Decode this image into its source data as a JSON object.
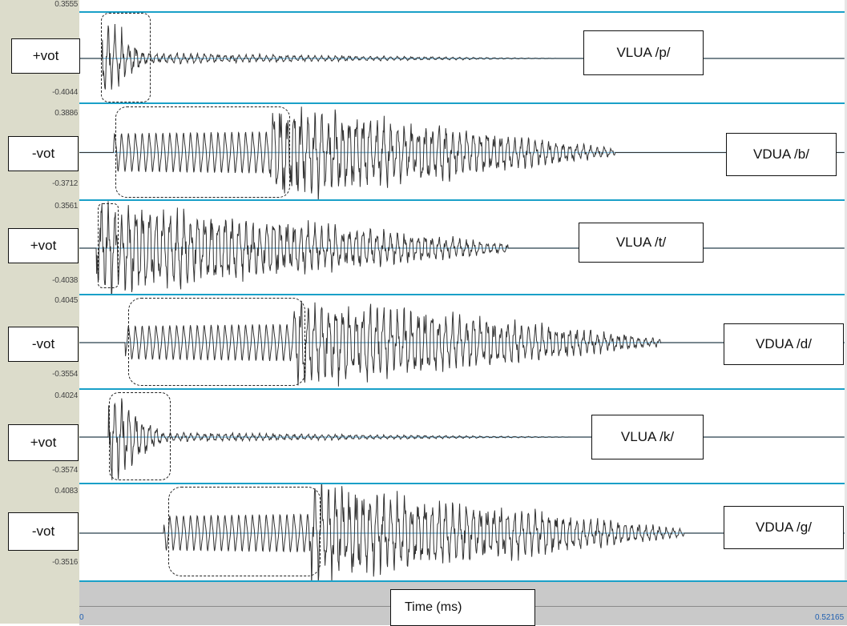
{
  "tracks": [
    {
      "scale_max": "0.3555",
      "scale_min": "-0.4044",
      "vot_label": "+vot",
      "phoneme_label": "VLUA /p/"
    },
    {
      "scale_max": "0.3886",
      "scale_min": "-0.3712",
      "vot_label": "-vot",
      "phoneme_label": "VDUA /b/"
    },
    {
      "scale_max": "0.3561",
      "scale_min": "-0.4038",
      "vot_label": "+vot",
      "phoneme_label": "VLUA /t/"
    },
    {
      "scale_max": "0.4045",
      "scale_min": "-0.3554",
      "vot_label": "-vot",
      "phoneme_label": "VDUA /d/"
    },
    {
      "scale_max": "0.4024",
      "scale_min": "-0.3574",
      "vot_label": "+vot",
      "phoneme_label": "VLUA /k/"
    },
    {
      "scale_max": "0.4083",
      "scale_min": "-0.3516",
      "vot_label": "-vot",
      "phoneme_label": "VDUA /g/"
    }
  ],
  "time_axis": {
    "label": "Time (ms)",
    "start": "0",
    "end": "0.52165"
  },
  "colors": {
    "panel": "#dcdccb",
    "divider": "#1aa0c8",
    "baseline": "#7fb8d8",
    "waveform": "#333333",
    "timebar": "#c9c9c9"
  }
}
